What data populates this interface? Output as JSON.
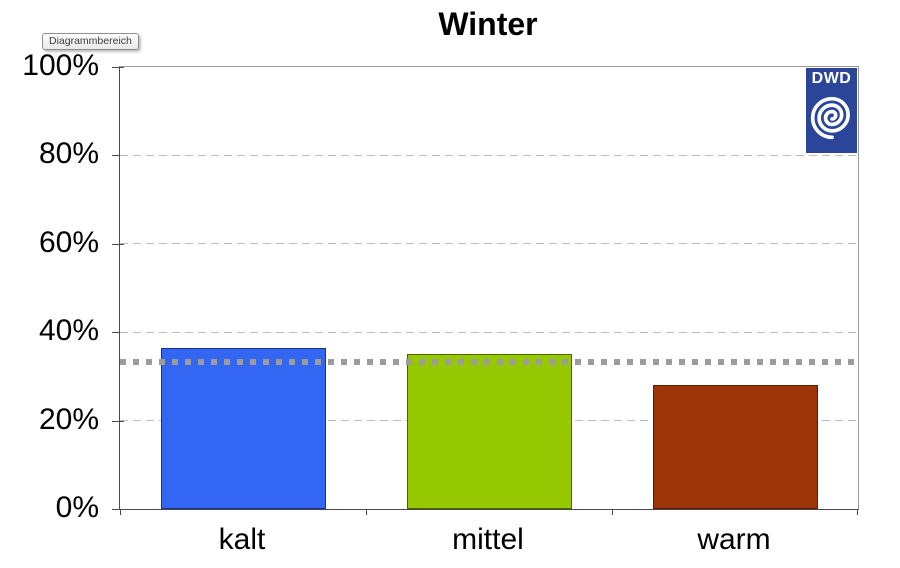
{
  "tooltip": {
    "label": "Diagrammbereich"
  },
  "logo": {
    "text": "DWD",
    "background_color": "#2b4699"
  },
  "chart_data": {
    "type": "bar",
    "title": "Winter",
    "categories": [
      "kalt",
      "mittel",
      "warm"
    ],
    "values": [
      36.5,
      35,
      28
    ],
    "unit": "%",
    "ylim": [
      0,
      100
    ],
    "yticks": [
      "0%",
      "20%",
      "40%",
      "60%",
      "80%",
      "100%"
    ],
    "ytick_values": [
      0,
      20,
      40,
      60,
      80,
      100
    ],
    "grid": "horizontal dashed lines at 20/40/60/80, solid top border at 100",
    "legend": "none",
    "reference_line": {
      "value": 33.3,
      "label": "",
      "color": "#9c9c9c",
      "style": "thick dotted"
    },
    "bar_colors": [
      "#3366f2",
      "#96c800",
      "#9e3508"
    ],
    "bar_border_colors": [
      "#1b2f8f",
      "#4c6600",
      "#571d04"
    ],
    "gridline_color": "#bdbdbd",
    "axis_color": "#4a4a4a"
  }
}
